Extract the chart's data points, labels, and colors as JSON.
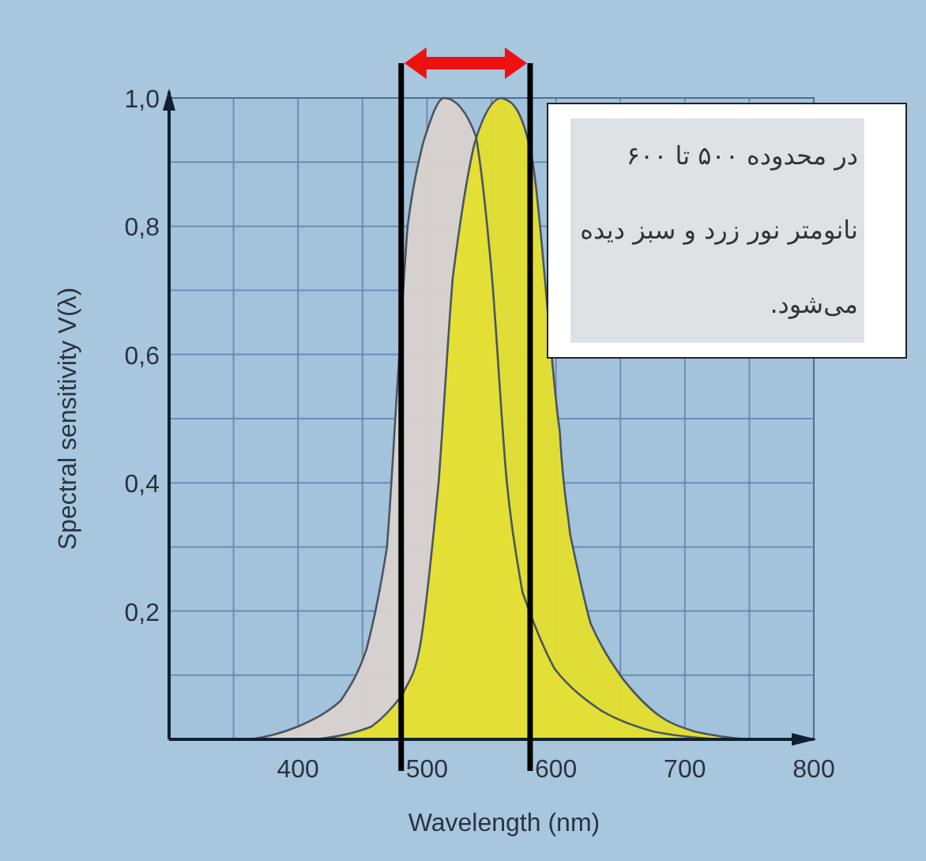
{
  "chart_data": {
    "type": "area",
    "xlabel": "Wavelength (nm)",
    "ylabel": "Spectral sensitivity V(λ)",
    "xlim": [
      300,
      800
    ],
    "ylim": [
      0,
      1
    ],
    "xticks": [
      {
        "value": 350,
        "label": null
      },
      400,
      {
        "value": 450,
        "label": null
      },
      500,
      {
        "value": 550,
        "label": null
      },
      600,
      {
        "value": 650,
        "label": null
      },
      700,
      {
        "value": 750,
        "label": null
      },
      800
    ],
    "yticks": [
      {
        "value": 0.1,
        "label": null
      },
      {
        "value": 0.2,
        "label": "0,2"
      },
      {
        "value": 0.3,
        "label": null
      },
      {
        "value": 0.4,
        "label": "0,4"
      },
      {
        "value": 0.5,
        "label": null
      },
      {
        "value": 0.6,
        "label": "0,6"
      },
      {
        "value": 0.7,
        "label": null
      },
      {
        "value": 0.8,
        "label": "0,8"
      },
      {
        "value": 0.9,
        "label": null
      },
      {
        "value": 1.0,
        "label": "1,0"
      }
    ],
    "grid": true,
    "series": [
      {
        "color": "#d9d2ce",
        "x": [
          363,
          400,
          433,
          453,
          469,
          477,
          485,
          497,
          513,
          538,
          550,
          562,
          574,
          599,
          635,
          676,
          729
        ],
        "values": [
          0,
          0.02,
          0.06,
          0.14,
          0.3,
          0.55,
          0.8,
          0.93,
          1.0,
          0.94,
          0.73,
          0.4,
          0.23,
          0.11,
          0.045,
          0.012,
          0
        ]
      },
      {
        "color": "#e4df2c",
        "x": [
          414,
          457,
          481,
          495,
          509,
          520,
          537,
          558,
          582,
          603,
          611,
          627,
          652,
          680,
          708,
          749
        ],
        "values": [
          0,
          0.02,
          0.07,
          0.15,
          0.4,
          0.72,
          0.93,
          1.0,
          0.9,
          0.48,
          0.32,
          0.18,
          0.094,
          0.037,
          0.012,
          0
        ]
      }
    ],
    "ref_lines": [
      {
        "axis": "x",
        "value": 480,
        "color": "#000000"
      },
      {
        "axis": "x",
        "value": 580,
        "color": "#000000"
      }
    ],
    "annotations": [
      "در محدوده ۵۰۰ تا ۶۰۰ نانومتر نور زرد و سبز دیده می‌شود."
    ]
  }
}
